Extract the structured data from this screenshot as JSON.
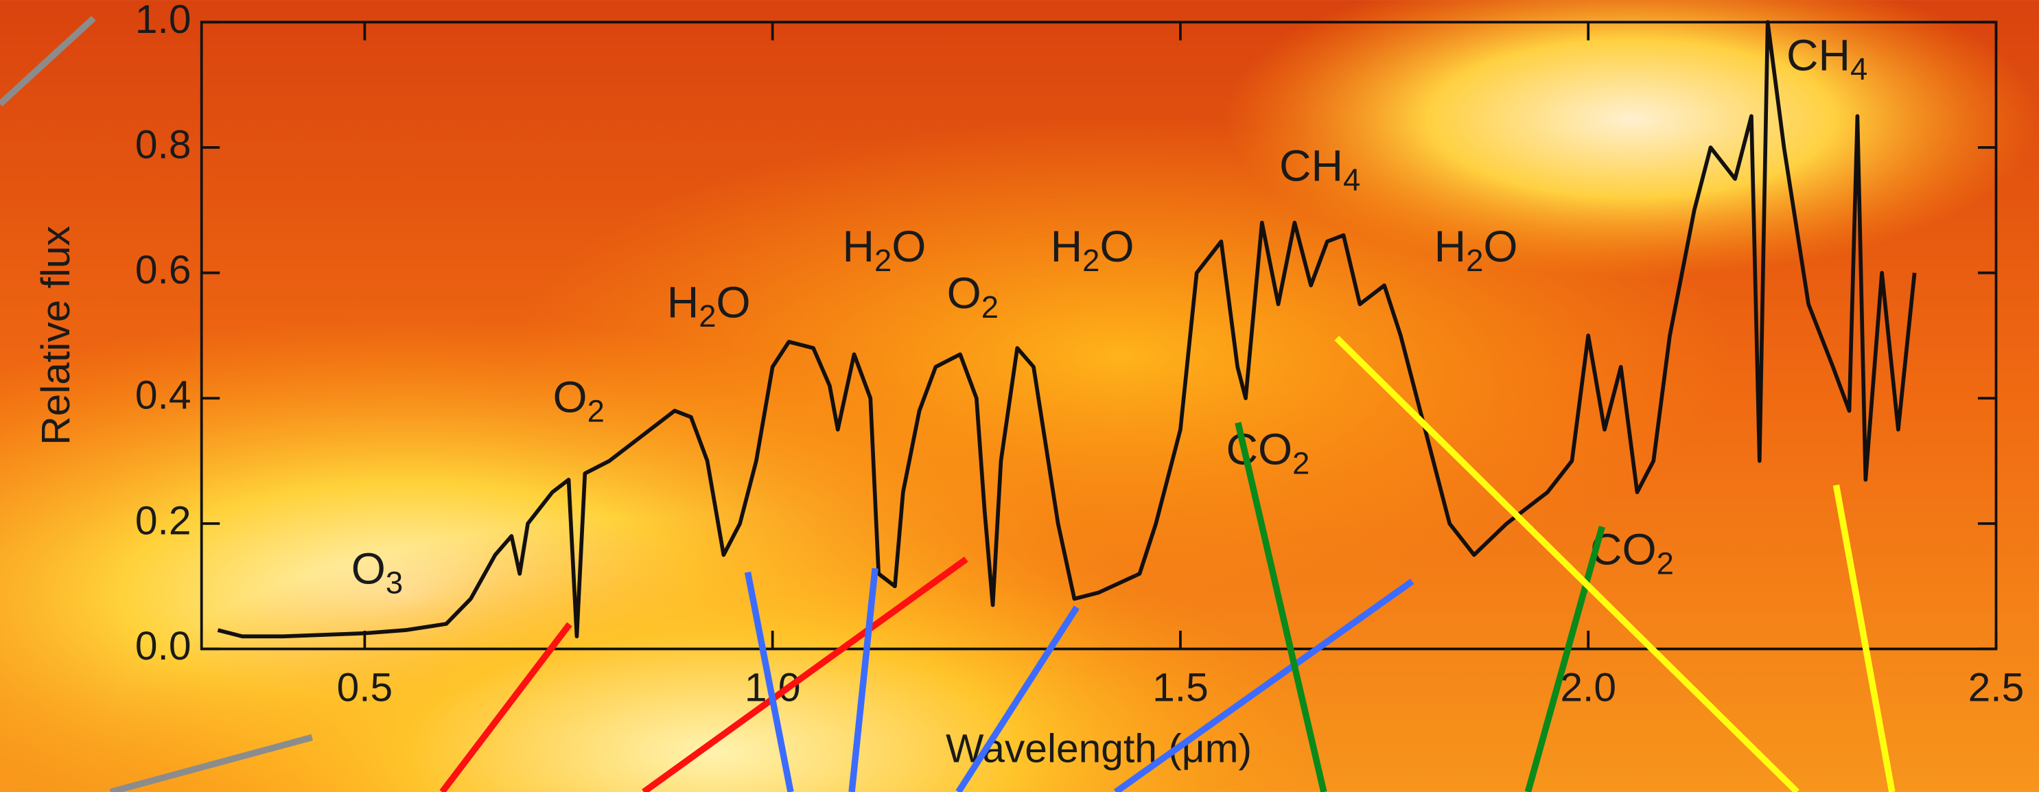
{
  "chart_data": {
    "type": "line",
    "x_label": "Wavelength (μm)",
    "y_label": "Relative flux",
    "xlim": [
      0.3,
      2.5
    ],
    "ylim": [
      0,
      1
    ],
    "xticks": [
      0.5,
      {
        "value": 1,
        "label": "1.0"
      },
      1.5,
      {
        "value": 2,
        "label": "2.0"
      },
      2.5
    ],
    "yticks": [
      {
        "value": 0,
        "label": "0.0"
      },
      0.2,
      0.4,
      0.6,
      0.8,
      {
        "value": 1,
        "label": "1.0"
      }
    ],
    "color": "#141010",
    "x": [
      0.32,
      0.35,
      0.4,
      0.5,
      0.55,
      0.6,
      0.63,
      0.66,
      0.68,
      0.69,
      0.7,
      0.73,
      0.75,
      0.76,
      0.77,
      0.8,
      0.85,
      0.88,
      0.9,
      0.92,
      0.94,
      0.96,
      0.98,
      1.0,
      1.02,
      1.05,
      1.07,
      1.08,
      1.1,
      1.12,
      1.13,
      1.15,
      1.16,
      1.18,
      1.2,
      1.23,
      1.25,
      1.26,
      1.27,
      1.28,
      1.3,
      1.32,
      1.35,
      1.37,
      1.4,
      1.45,
      1.47,
      1.5,
      1.52,
      1.55,
      1.57,
      1.58,
      1.6,
      1.62,
      1.64,
      1.66,
      1.68,
      1.7,
      1.72,
      1.75,
      1.77,
      1.8,
      1.83,
      1.86,
      1.9,
      1.95,
      1.98,
      2.0,
      2.02,
      2.04,
      2.06,
      2.08,
      2.1,
      2.13,
      2.15,
      2.18,
      2.2,
      2.21,
      2.22,
      2.24,
      2.27,
      2.3,
      2.32,
      2.33,
      2.34,
      2.36,
      2.38,
      2.4
    ],
    "values": [
      0.03,
      0.02,
      0.02,
      0.025,
      0.03,
      0.04,
      0.08,
      0.15,
      0.18,
      0.12,
      0.2,
      0.25,
      0.27,
      0.02,
      0.28,
      0.3,
      0.35,
      0.38,
      0.37,
      0.3,
      0.15,
      0.2,
      0.3,
      0.45,
      0.49,
      0.48,
      0.42,
      0.35,
      0.47,
      0.4,
      0.12,
      0.1,
      0.25,
      0.38,
      0.45,
      0.47,
      0.4,
      0.22,
      0.07,
      0.3,
      0.48,
      0.45,
      0.2,
      0.08,
      0.09,
      0.12,
      0.2,
      0.35,
      0.6,
      0.65,
      0.45,
      0.4,
      0.68,
      0.55,
      0.68,
      0.58,
      0.65,
      0.66,
      0.55,
      0.58,
      0.5,
      0.35,
      0.2,
      0.15,
      0.2,
      0.25,
      0.3,
      0.5,
      0.35,
      0.45,
      0.25,
      0.3,
      0.5,
      0.7,
      0.8,
      0.75,
      0.85,
      0.3,
      1.0,
      0.8,
      0.55,
      0.45,
      0.38,
      0.85,
      0.27,
      0.6,
      0.35,
      0.6
    ],
    "annotations": [
      {
        "text": "O",
        "sub": "3"
      },
      {
        "text": "O",
        "sub": "2"
      },
      {
        "text": "H",
        "sub": "2",
        "after": "O"
      },
      {
        "text": "H",
        "sub": "2",
        "after": "O"
      },
      {
        "text": "O",
        "sub": "2"
      },
      {
        "text": "H",
        "sub": "2",
        "after": "O"
      },
      {
        "text": "CH",
        "sub": "4"
      },
      {
        "text": "CO",
        "sub": "2"
      },
      {
        "text": "H",
        "sub": "2",
        "after": "O"
      },
      {
        "text": "CO",
        "sub": "2"
      },
      {
        "text": "CH",
        "sub": "4"
      }
    ]
  }
}
